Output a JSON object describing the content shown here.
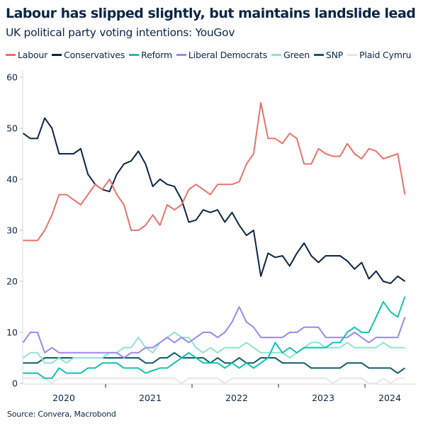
{
  "title": "Labour has slipped slightly, but maintains landslide lead",
  "subtitle": "UK political party voting intentions: YouGov",
  "source": "Source: Convera, Macrobond",
  "chart_data": {
    "type": "line",
    "title": "Labour has slipped slightly, but maintains landslide lead",
    "subtitle": "UK political party voting intentions: YouGov",
    "xlabel": "",
    "ylabel": "",
    "ylim": [
      0,
      60
    ],
    "yticks": [
      "0",
      "10",
      "20",
      "30",
      "40",
      "50",
      "60"
    ],
    "xticks": [
      "2020",
      "2021",
      "2022",
      "2023",
      "2024"
    ],
    "xlim": [
      "2020-01",
      "2024-06"
    ],
    "grid": false,
    "legend_position": "top",
    "x": [
      "2020-01",
      "2020-02",
      "2020-03",
      "2020-04",
      "2020-05",
      "2020-06",
      "2020-07",
      "2020-08",
      "2020-09",
      "2020-10",
      "2020-11",
      "2020-12",
      "2021-01",
      "2021-02",
      "2021-03",
      "2021-04",
      "2021-05",
      "2021-06",
      "2021-07",
      "2021-08",
      "2021-09",
      "2021-10",
      "2021-11",
      "2021-12",
      "2022-01",
      "2022-02",
      "2022-03",
      "2022-04",
      "2022-05",
      "2022-06",
      "2022-07",
      "2022-08",
      "2022-09",
      "2022-10",
      "2022-11",
      "2022-12",
      "2023-01",
      "2023-02",
      "2023-03",
      "2023-04",
      "2023-05",
      "2023-06",
      "2023-07",
      "2023-08",
      "2023-09",
      "2023-10",
      "2023-11",
      "2023-12",
      "2024-01",
      "2024-02",
      "2024-03",
      "2024-04",
      "2024-05",
      "2024-06"
    ],
    "series": [
      {
        "name": "Plaid Cymru",
        "color": "#e6e6e6",
        "values": [
          1,
          1,
          1,
          1,
          0,
          1,
          1,
          1,
          1,
          1,
          1,
          1,
          1,
          1,
          1,
          1,
          1,
          1,
          1,
          1,
          1,
          1,
          0,
          1,
          1,
          1,
          1,
          1,
          0,
          1,
          1,
          1,
          1,
          1,
          1,
          1,
          1,
          1,
          1,
          1,
          1,
          1,
          1,
          0,
          1,
          1,
          1,
          1,
          0,
          0,
          1,
          0,
          1,
          1
        ]
      },
      {
        "name": "SNP",
        "color": "#0f5c6a",
        "values": [
          4,
          4,
          4,
          5,
          5,
          5,
          5,
          5,
          5,
          5,
          5,
          5,
          5,
          5,
          5,
          5,
          5,
          4,
          4,
          5,
          5,
          6,
          5,
          5,
          5,
          5,
          4,
          5,
          4,
          4,
          5,
          4,
          4,
          5,
          5,
          5,
          4,
          4,
          4,
          4,
          3,
          3,
          3,
          3,
          3,
          4,
          4,
          4,
          3,
          3,
          3,
          3,
          2,
          3
        ]
      },
      {
        "name": "Green",
        "color": "#8ee3cf",
        "values": [
          5,
          6,
          6,
          4,
          4,
          5,
          4,
          5,
          5,
          5,
          5,
          5,
          6,
          6,
          7,
          7,
          9,
          7,
          6,
          8,
          9,
          10,
          9,
          9,
          7,
          6,
          7,
          6,
          7,
          7,
          7,
          8,
          7,
          6,
          6,
          6,
          6,
          5,
          6,
          7,
          8,
          8,
          7,
          7,
          7,
          8,
          7,
          7,
          7,
          7,
          8,
          7,
          7,
          7
        ]
      },
      {
        "name": "Liberal Democrats",
        "color": "#9b87f0",
        "values": [
          8,
          10,
          10,
          6,
          7,
          6,
          6,
          6,
          6,
          6,
          6,
          6,
          6,
          6,
          5,
          6,
          6,
          7,
          7,
          8,
          9,
          8,
          9,
          8,
          9,
          10,
          10,
          9,
          10,
          12,
          15,
          12,
          11,
          9,
          9,
          9,
          9,
          10,
          10,
          11,
          11,
          11,
          9,
          9,
          9,
          9,
          10,
          9,
          8,
          9,
          9,
          9,
          9,
          13
        ]
      },
      {
        "name": "Reform",
        "color": "#10c3b0",
        "values": [
          2,
          2,
          2,
          1,
          1,
          3,
          2,
          2,
          2,
          3,
          3,
          4,
          4,
          4,
          3,
          3,
          3,
          2,
          2.5,
          3,
          3,
          4,
          5,
          6,
          5,
          4,
          4,
          4,
          3,
          4,
          3,
          4,
          3,
          4,
          5,
          8,
          6,
          7,
          6,
          7,
          7,
          7,
          7,
          8,
          8,
          10,
          11,
          10,
          10,
          13,
          16,
          14,
          13,
          17
        ]
      },
      {
        "name": "Conservatives",
        "color": "#0b2545",
        "values": [
          49,
          48,
          48,
          52,
          50,
          45,
          45,
          45,
          46,
          41,
          39,
          38,
          37.6,
          41,
          43,
          43.6,
          45.5,
          43,
          38.6,
          40,
          39,
          38.6,
          36,
          31.6,
          32,
          34,
          33.5,
          34,
          31.6,
          33.5,
          31,
          29,
          30,
          21,
          25.5,
          24.7,
          25,
          23,
          25.5,
          27.5,
          25,
          23.7,
          25,
          25,
          25,
          24,
          22.4,
          23.7,
          20.5,
          22,
          20,
          19.6,
          21,
          20
        ]
      },
      {
        "name": "Labour",
        "color": "#e8736b",
        "values": [
          28,
          28,
          28,
          30,
          33,
          37,
          37,
          36,
          35,
          37,
          39,
          38,
          40,
          37,
          35,
          30,
          30,
          31,
          33,
          31,
          35,
          34,
          35,
          38,
          39,
          38,
          37,
          39,
          39,
          39,
          39.5,
          43,
          45,
          55,
          48,
          48,
          47,
          49,
          48,
          43,
          43,
          46,
          45,
          44.5,
          44.5,
          47,
          45,
          44,
          46,
          45.5,
          44,
          44.5,
          45,
          37
        ]
      }
    ]
  },
  "legend": [
    {
      "label": "Labour",
      "color": "#e8736b"
    },
    {
      "label": "Conservatives",
      "color": "#0b2545"
    },
    {
      "label": "Reform",
      "color": "#10c3b0"
    },
    {
      "label": "Liberal Democrats",
      "color": "#9b87f0"
    },
    {
      "label": "Green",
      "color": "#8ee3cf"
    },
    {
      "label": "SNP",
      "color": "#0f5c6a"
    },
    {
      "label": "Plaid Cymru",
      "color": "#e6e6e6"
    }
  ]
}
